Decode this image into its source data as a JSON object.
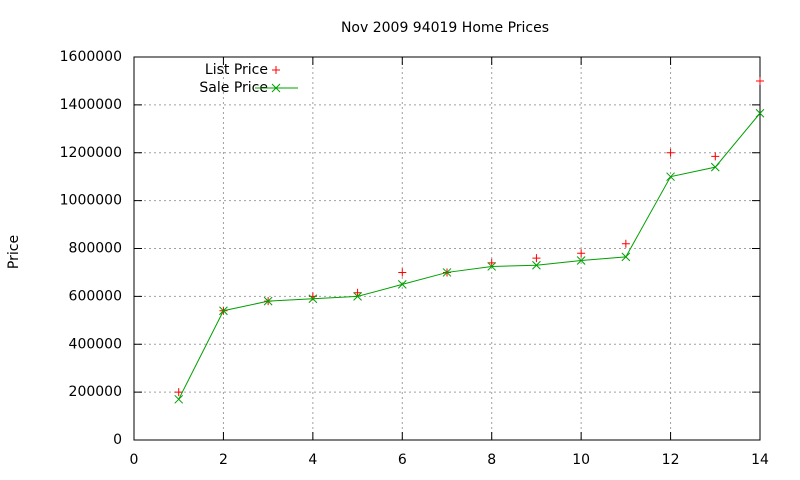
{
  "chart_data": {
    "type": "line",
    "title": "Nov 2009 94019 Home Prices",
    "y_label": "Price",
    "x": [
      1,
      2,
      3,
      4,
      5,
      6,
      7,
      8,
      9,
      10,
      11,
      12,
      13,
      14
    ],
    "series": [
      {
        "name": "List Price",
        "color": "#ff0000",
        "marker": "+",
        "line": false,
        "values": [
          200000,
          540000,
          580000,
          600000,
          615000,
          700000,
          700000,
          740000,
          760000,
          780000,
          820000,
          1200000,
          1185000,
          1500000
        ]
      },
      {
        "name": "Sale Price",
        "color": "#00a000",
        "marker": "x",
        "line": true,
        "values": [
          170000,
          540000,
          580000,
          590000,
          600000,
          650000,
          700000,
          725000,
          730000,
          750000,
          765000,
          1100000,
          1140000,
          1365000
        ]
      }
    ],
    "xlim": [
      0,
      14
    ],
    "xticks": [
      0,
      2,
      4,
      6,
      8,
      10,
      12,
      14
    ],
    "ylim": [
      0,
      1600000
    ],
    "yticks": [
      0,
      200000,
      400000,
      600000,
      800000,
      1000000,
      1200000,
      1400000,
      1600000
    ],
    "grid": true,
    "legend": "top-left"
  }
}
